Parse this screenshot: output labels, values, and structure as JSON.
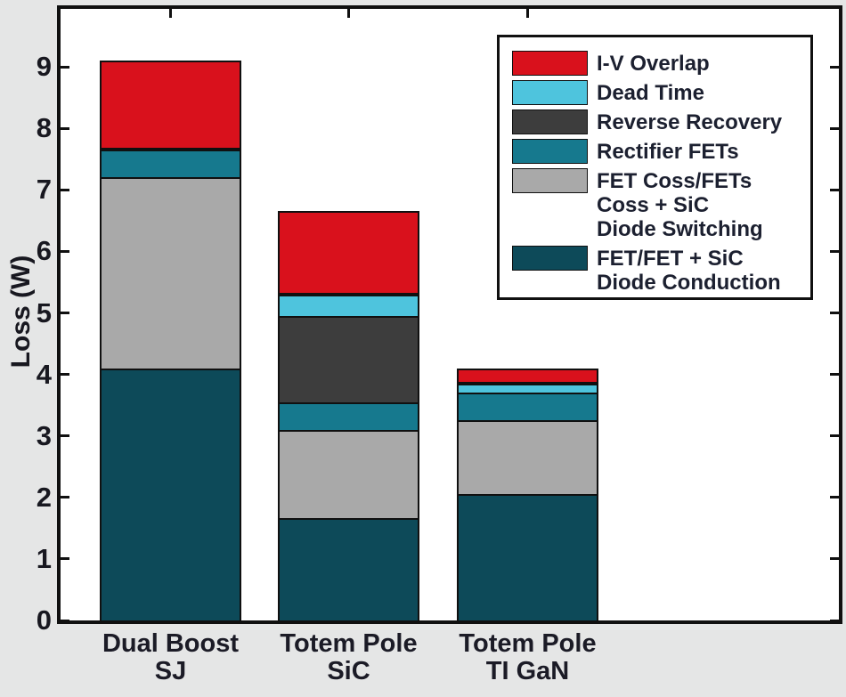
{
  "figure": {
    "background_color": "#e5e6e6",
    "plot_background_color": "#ffffff",
    "frame_color": "#101010",
    "text_color": "#181820"
  },
  "chart_data": {
    "type": "bar",
    "stacked": true,
    "title": "",
    "xlabel": "",
    "ylabel": "Loss (W)",
    "ylim": [
      0,
      9.94
    ],
    "yticks": [
      0,
      1,
      2,
      3,
      4,
      5,
      6,
      7,
      8,
      9
    ],
    "grid": false,
    "legend_position": "upper right",
    "legend_order": "reverse of stacking (top entry = topmost segment)",
    "categories": [
      "Dual Boost\nSJ",
      "Totem Pole\nSiC",
      "Totem Pole\nTI GaN"
    ],
    "series": [
      {
        "name": "FET/FET + SiC\nDiode Conduction",
        "color": "#0d4a59",
        "values": [
          4.1,
          1.67,
          2.05
        ]
      },
      {
        "name": "FET Coss/FETs\nCoss + SiC\nDiode Switching",
        "color": "#a9a9a9",
        "values": [
          3.1,
          1.43,
          1.2
        ]
      },
      {
        "name": "Rectifier FETs",
        "color": "#16798e",
        "values": [
          0.45,
          0.45,
          0.45
        ]
      },
      {
        "name": "Reverse Recovery",
        "color": "#3d3d3d",
        "values": [
          0,
          1.4,
          0
        ]
      },
      {
        "name": "Dead Time",
        "color": "#4ec4dd",
        "values": [
          0,
          0.35,
          0.15
        ]
      },
      {
        "name": "I-V Overlap",
        "color": "#d9111c",
        "values": [
          1.45,
          1.35,
          0.25
        ]
      }
    ],
    "bar_totals": [
      9.1,
      6.65,
      4.1
    ]
  }
}
